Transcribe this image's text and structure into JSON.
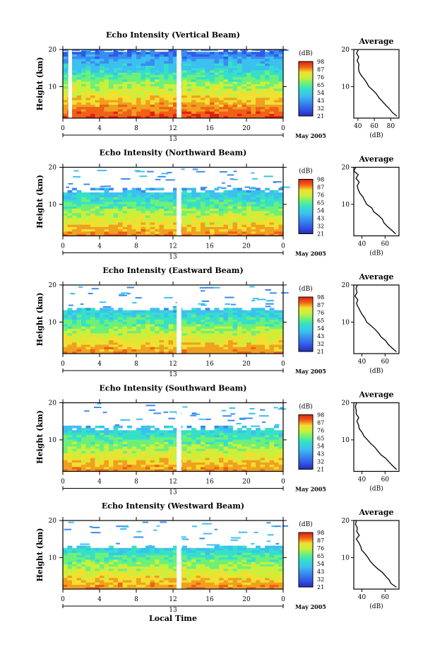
{
  "figure": {
    "xlabel": "Local Time",
    "date_label": "May 2005",
    "day_label": "13"
  },
  "colors": {
    "scale": [
      "#2a2ab8",
      "#2f5ae8",
      "#3a8cf0",
      "#3cc0f0",
      "#36e0c8",
      "#6cf07a",
      "#c8f03c",
      "#f0e030",
      "#f0a020",
      "#f06018",
      "#e02010"
    ]
  },
  "chart_data": [
    {
      "type": "heatmap",
      "title": "Echo Intensity (Vertical Beam)",
      "ylabel": "Height (km)",
      "x_ticks": [
        "0",
        "4",
        "8",
        "12",
        "16",
        "20",
        "0"
      ],
      "xlim": [
        0,
        24
      ],
      "y_ticks": [
        "10",
        "20"
      ],
      "ylim": [
        1.5,
        20
      ],
      "colorbar_label": "(dB)",
      "colorbar_ticks": [
        "98",
        "87",
        "76",
        "65",
        "54",
        "43",
        "32",
        "21"
      ],
      "data_gaps_hours": [
        [
          0.6,
          1.0
        ],
        [
          12.4,
          12.9
        ]
      ],
      "average": {
        "title": "Average",
        "xlabel": "(dB)",
        "x_ticks": [
          "40",
          "60",
          "80"
        ],
        "xlim": [
          35,
          90
        ],
        "y_ticks": [
          "10",
          "20"
        ],
        "profile": [
          [
            2,
            88
          ],
          [
            3,
            82
          ],
          [
            4,
            78
          ],
          [
            5,
            74
          ],
          [
            6,
            70
          ],
          [
            7,
            66
          ],
          [
            8,
            62
          ],
          [
            9,
            58
          ],
          [
            10,
            54
          ],
          [
            11,
            50
          ],
          [
            12,
            47
          ],
          [
            13,
            44
          ],
          [
            14,
            42
          ],
          [
            15,
            41
          ],
          [
            16,
            42
          ],
          [
            17,
            40
          ],
          [
            18,
            41
          ],
          [
            19,
            39
          ],
          [
            20,
            40
          ]
        ]
      }
    },
    {
      "type": "heatmap",
      "title": "Echo Intensity (Northward Beam)",
      "ylabel": "Height (km)",
      "x_ticks": [
        "0",
        "4",
        "8",
        "12",
        "16",
        "20",
        "0"
      ],
      "xlim": [
        0,
        24
      ],
      "y_ticks": [
        "10",
        "20"
      ],
      "ylim": [
        1.5,
        20
      ],
      "colorbar_label": "(dB)",
      "colorbar_ticks": [
        "98",
        "87",
        "76",
        "65",
        "54",
        "43",
        "32",
        "21"
      ],
      "data_gaps_hours": [
        [
          12.4,
          12.9
        ]
      ],
      "average": {
        "title": "Average",
        "xlabel": "(dB)",
        "x_ticks": [
          "40",
          "60"
        ],
        "xlim": [
          33,
          72
        ],
        "y_ticks": [
          "10",
          "20"
        ],
        "profile": [
          [
            2,
            70
          ],
          [
            3,
            66
          ],
          [
            4,
            63
          ],
          [
            5,
            60
          ],
          [
            6,
            57
          ],
          [
            7,
            54
          ],
          [
            8,
            51
          ],
          [
            9,
            48
          ],
          [
            10,
            45
          ],
          [
            11,
            42
          ],
          [
            12,
            40
          ],
          [
            13,
            38
          ],
          [
            14,
            37
          ],
          [
            15,
            36
          ],
          [
            16,
            37
          ],
          [
            17,
            35
          ],
          [
            18,
            36
          ],
          [
            19,
            34
          ],
          [
            20,
            35
          ]
        ]
      }
    },
    {
      "type": "heatmap",
      "title": "Echo Intensity (Eastward Beam)",
      "ylabel": "Height (km)",
      "x_ticks": [
        "0",
        "4",
        "8",
        "12",
        "16",
        "20",
        "0"
      ],
      "xlim": [
        0,
        24
      ],
      "y_ticks": [
        "10",
        "20"
      ],
      "ylim": [
        1.5,
        20
      ],
      "colorbar_label": "(dB)",
      "colorbar_ticks": [
        "98",
        "87",
        "76",
        "65",
        "54",
        "43",
        "32",
        "21"
      ],
      "data_gaps_hours": [
        [
          12.4,
          12.9
        ]
      ],
      "average": {
        "title": "Average",
        "xlabel": "(dB)",
        "x_ticks": [
          "40",
          "60"
        ],
        "xlim": [
          33,
          72
        ],
        "y_ticks": [
          "10",
          "20"
        ],
        "profile": [
          [
            2,
            70
          ],
          [
            3,
            66
          ],
          [
            4,
            63
          ],
          [
            5,
            60
          ],
          [
            6,
            57
          ],
          [
            7,
            54
          ],
          [
            8,
            51
          ],
          [
            9,
            48
          ],
          [
            10,
            45
          ],
          [
            11,
            42
          ],
          [
            12,
            40
          ],
          [
            13,
            38
          ],
          [
            14,
            37
          ],
          [
            15,
            36
          ],
          [
            16,
            37
          ],
          [
            17,
            35
          ],
          [
            18,
            36
          ],
          [
            19,
            34
          ],
          [
            20,
            35
          ]
        ]
      }
    },
    {
      "type": "heatmap",
      "title": "Echo Intensity (Southward Beam)",
      "ylabel": "Height (km)",
      "x_ticks": [
        "0",
        "4",
        "8",
        "12",
        "16",
        "20",
        "0"
      ],
      "xlim": [
        0,
        24
      ],
      "y_ticks": [
        "10",
        "20"
      ],
      "ylim": [
        1.5,
        20
      ],
      "colorbar_label": "(dB)",
      "colorbar_ticks": [
        "98",
        "87",
        "76",
        "65",
        "54",
        "43",
        "32",
        "21"
      ],
      "data_gaps_hours": [
        [
          12.4,
          12.9
        ]
      ],
      "average": {
        "title": "Average",
        "xlabel": "(dB)",
        "x_ticks": [
          "40",
          "60"
        ],
        "xlim": [
          33,
          72
        ],
        "y_ticks": [
          "10",
          "20"
        ],
        "profile": [
          [
            2,
            70
          ],
          [
            3,
            66
          ],
          [
            4,
            63
          ],
          [
            5,
            60
          ],
          [
            6,
            57
          ],
          [
            7,
            54
          ],
          [
            8,
            51
          ],
          [
            9,
            48
          ],
          [
            10,
            45
          ],
          [
            11,
            42
          ],
          [
            12,
            40
          ],
          [
            13,
            38
          ],
          [
            14,
            37
          ],
          [
            15,
            36
          ],
          [
            16,
            37
          ],
          [
            17,
            35
          ],
          [
            18,
            36
          ],
          [
            19,
            34
          ],
          [
            20,
            35
          ]
        ]
      }
    },
    {
      "type": "heatmap",
      "title": "Echo Intensity (Westward Beam)",
      "ylabel": "Height (km)",
      "x_ticks": [
        "0",
        "4",
        "8",
        "12",
        "16",
        "20",
        "0"
      ],
      "xlim": [
        0,
        24
      ],
      "y_ticks": [
        "10",
        "20"
      ],
      "ylim": [
        1.5,
        20
      ],
      "colorbar_label": "(dB)",
      "colorbar_ticks": [
        "98",
        "87",
        "76",
        "65",
        "54",
        "43",
        "32",
        "21"
      ],
      "data_gaps_hours": [
        [
          12.4,
          12.9
        ]
      ],
      "average": {
        "title": "Average",
        "xlabel": "(dB)",
        "x_ticks": [
          "40",
          "60"
        ],
        "xlim": [
          33,
          72
        ],
        "y_ticks": [
          "10",
          "20"
        ],
        "profile": [
          [
            2,
            70
          ],
          [
            3,
            66
          ],
          [
            4,
            63
          ],
          [
            5,
            60
          ],
          [
            6,
            57
          ],
          [
            7,
            54
          ],
          [
            8,
            51
          ],
          [
            9,
            48
          ],
          [
            10,
            45
          ],
          [
            11,
            42
          ],
          [
            12,
            40
          ],
          [
            13,
            38
          ],
          [
            14,
            37
          ],
          [
            15,
            36
          ],
          [
            16,
            37
          ],
          [
            17,
            35
          ],
          [
            18,
            36
          ],
          [
            19,
            34
          ],
          [
            20,
            35
          ]
        ]
      }
    }
  ]
}
